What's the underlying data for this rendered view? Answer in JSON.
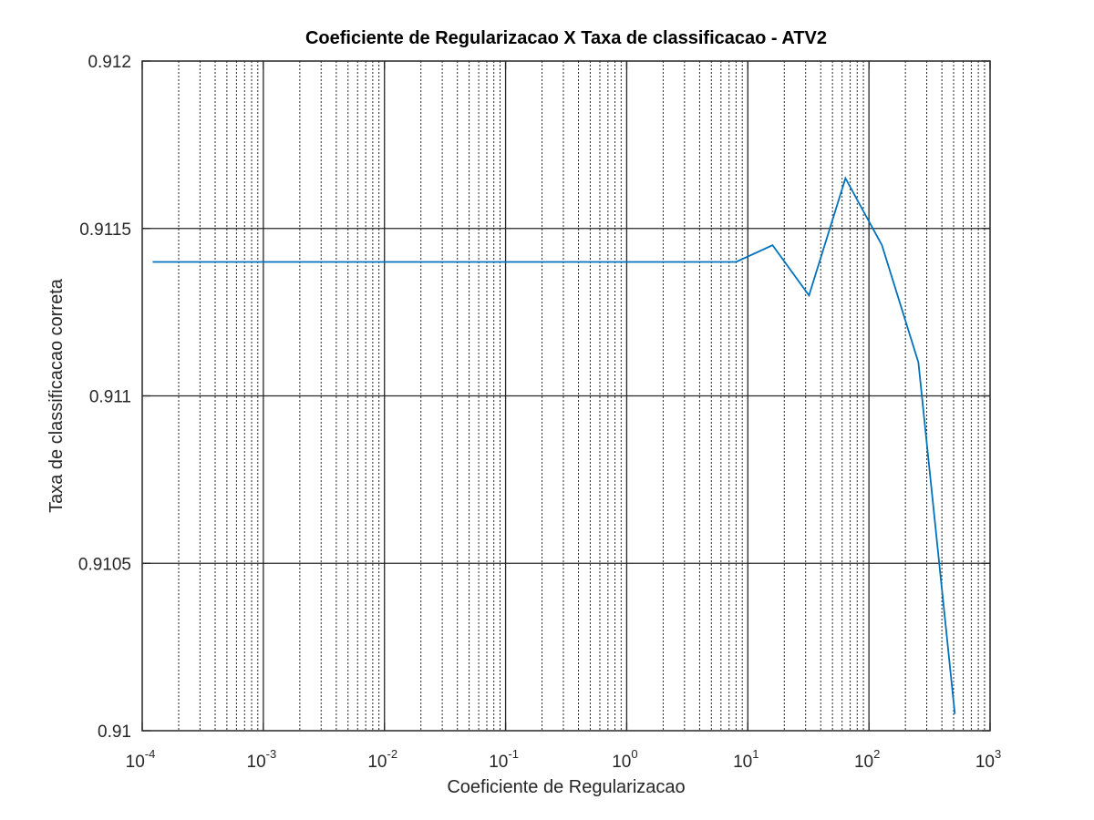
{
  "chart_data": {
    "type": "line",
    "title": "Coeficiente de Regularizacao X Taxa de classificacao - ATV2",
    "xlabel": "Coeficiente de Regularizacao",
    "ylabel": "Taxa de classificacao correta",
    "xscale": "log",
    "xlim": [
      0.0001,
      1000
    ],
    "ylim": [
      0.91,
      0.912
    ],
    "grid": true,
    "minor_grid": true,
    "x_tick_base": "10",
    "x_tick_exponents": [
      "-4",
      "-3",
      "-2",
      "-1",
      "0",
      "1",
      "2",
      "3"
    ],
    "y_ticks": [
      "0.91",
      "0.9105",
      "0.911",
      "0.9115",
      "0.912"
    ],
    "line_color": "#0072bd",
    "series": [
      {
        "x": [
          0.000122,
          0.000244,
          0.000488,
          0.000977,
          0.00195,
          0.00391,
          0.00781,
          0.0156,
          0.03125,
          0.0625,
          0.125,
          0.25,
          0.5,
          1,
          2,
          4,
          8,
          16,
          32,
          64,
          128,
          256,
          512
        ],
        "y": [
          0.9114,
          0.9114,
          0.9114,
          0.9114,
          0.9114,
          0.9114,
          0.9114,
          0.9114,
          0.9114,
          0.9114,
          0.9114,
          0.9114,
          0.9114,
          0.9114,
          0.9114,
          0.9114,
          0.9114,
          0.91145,
          0.9113,
          0.91165,
          0.91145,
          0.9111,
          0.91005
        ]
      }
    ]
  }
}
